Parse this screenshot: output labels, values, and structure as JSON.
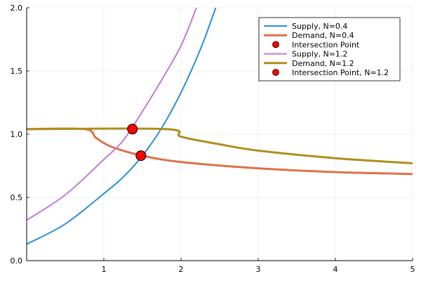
{
  "chart_data": {
    "type": "line",
    "title": "",
    "xlabel": "",
    "ylabel": "",
    "xlim": [
      0,
      5
    ],
    "ylim": [
      0,
      2
    ],
    "xticks": [
      "1",
      "2",
      "3",
      "4",
      "5"
    ],
    "yticks": [
      "0.0",
      "0.5",
      "1.0",
      "1.5",
      "2.0"
    ],
    "grid": true,
    "legend_position": "top-right",
    "series": [
      {
        "name": "Supply, N=0.4",
        "kind": "line",
        "color": "#2a8fd6",
        "points": [
          [
            0,
            0.13
          ],
          [
            0.5,
            0.29
          ],
          [
            1,
            0.53
          ],
          [
            1.25,
            0.66
          ],
          [
            1.5,
            0.83
          ],
          [
            1.75,
            1.05
          ],
          [
            2,
            1.33
          ],
          [
            2.25,
            1.67
          ],
          [
            2.45,
            2.0
          ]
        ]
      },
      {
        "name": "Demand, N=0.4",
        "kind": "line",
        "color": "#e0704a",
        "points": [
          [
            0,
            1.04
          ],
          [
            0.75,
            1.04
          ],
          [
            0.9,
            0.97
          ],
          [
            1.1,
            0.9
          ],
          [
            1.5,
            0.83
          ],
          [
            2,
            0.78
          ],
          [
            3,
            0.73
          ],
          [
            4,
            0.7
          ],
          [
            5,
            0.685
          ]
        ]
      },
      {
        "name": "Intersection Point",
        "kind": "marker",
        "color": "#ff0000",
        "points": [
          [
            1.48,
            0.83
          ]
        ]
      },
      {
        "name": "Supply, N=1.2",
        "kind": "line",
        "color": "#c27ad6",
        "points": [
          [
            0,
            0.32
          ],
          [
            0.5,
            0.52
          ],
          [
            1,
            0.8
          ],
          [
            1.25,
            0.95
          ],
          [
            1.5,
            1.18
          ],
          [
            1.75,
            1.43
          ],
          [
            2,
            1.7
          ],
          [
            2.2,
            2.0
          ]
        ]
      },
      {
        "name": "Demand, N=1.2",
        "kind": "line",
        "color": "#b08d1a",
        "points": [
          [
            0,
            1.04
          ],
          [
            1.8,
            1.04
          ],
          [
            2,
            0.98
          ],
          [
            2.5,
            0.92
          ],
          [
            3,
            0.87
          ],
          [
            4,
            0.81
          ],
          [
            5,
            0.77
          ]
        ]
      },
      {
        "name": "Intersection Point, N=1.2",
        "kind": "marker",
        "color": "#ff0000",
        "points": [
          [
            1.37,
            1.04
          ]
        ]
      }
    ]
  }
}
